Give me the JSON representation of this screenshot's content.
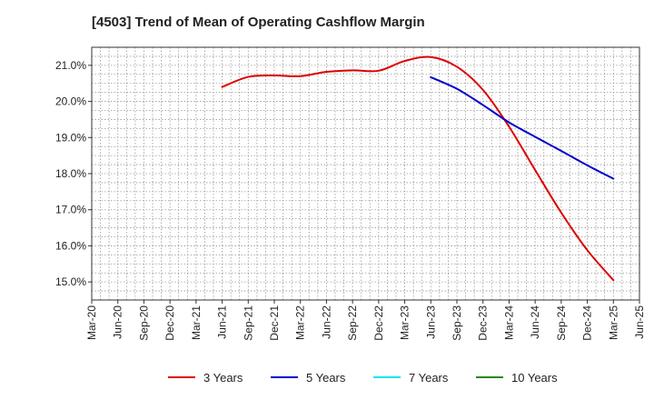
{
  "chart_data": {
    "type": "line",
    "title": "[4503]  Trend of Mean of Operating Cashflow Margin",
    "xlabel": "",
    "ylabel": "",
    "x_ticks": [
      "Mar-20",
      "Jun-20",
      "Sep-20",
      "Dec-20",
      "Mar-21",
      "Jun-21",
      "Sep-21",
      "Dec-21",
      "Mar-22",
      "Jun-22",
      "Sep-22",
      "Dec-22",
      "Mar-23",
      "Jun-23",
      "Sep-23",
      "Dec-23",
      "Mar-24",
      "Jun-24",
      "Sep-24",
      "Dec-24",
      "Mar-25",
      "Jun-25"
    ],
    "y_ticks": [
      "15.0%",
      "16.0%",
      "17.0%",
      "18.0%",
      "19.0%",
      "20.0%",
      "21.0%"
    ],
    "ylim": [
      14.5,
      21.5
    ],
    "grid": true,
    "legend_position": "bottom",
    "series": [
      {
        "name": "3 Years",
        "color": "#dd0000",
        "x": [
          "Jun-21",
          "Sep-21",
          "Dec-21",
          "Mar-22",
          "Jun-22",
          "Sep-22",
          "Dec-22",
          "Mar-23",
          "Jun-23",
          "Sep-23",
          "Dec-23",
          "Mar-24",
          "Jun-24",
          "Sep-24",
          "Dec-24",
          "Mar-25"
        ],
        "values": [
          20.4,
          20.68,
          20.72,
          20.7,
          20.82,
          20.86,
          20.85,
          21.12,
          21.23,
          20.96,
          20.32,
          19.3,
          18.1,
          16.92,
          15.88,
          15.05
        ]
      },
      {
        "name": "5 Years",
        "color": "#0000cc",
        "x": [
          "Jun-23",
          "Sep-23",
          "Dec-23",
          "Mar-24",
          "Jun-24",
          "Sep-24",
          "Dec-24",
          "Mar-25"
        ],
        "values": [
          20.67,
          20.35,
          19.9,
          19.42,
          19.02,
          18.63,
          18.23,
          17.86
        ]
      },
      {
        "name": "7 Years",
        "color": "#00e5ee",
        "x": [],
        "values": []
      },
      {
        "name": "10 Years",
        "color": "#228b22",
        "x": [],
        "values": []
      }
    ]
  }
}
